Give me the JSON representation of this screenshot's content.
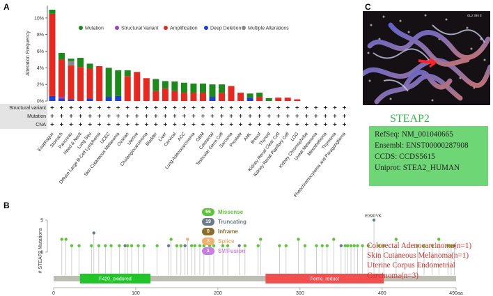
{
  "panels": {
    "a": "A",
    "b": "B",
    "c": "C"
  },
  "chart_data": [
    {
      "type": "bar",
      "title": "",
      "ylabel": "Alteration Frequency",
      "ylim": [
        0,
        11.5
      ],
      "yticks": [
        "0%",
        "2%",
        "4%",
        "6%",
        "8%",
        "10%"
      ],
      "legend": [
        {
          "name": "Mutation",
          "color": "#1a8a1a"
        },
        {
          "name": "Structural Variant",
          "color": "#9a3fbf"
        },
        {
          "name": "Amplification",
          "color": "#e8281e"
        },
        {
          "name": "Deep Deletion",
          "color": "#1e3fd6"
        },
        {
          "name": "Multiple Alterations",
          "color": "#888888"
        }
      ],
      "categories": [
        "Esophagus",
        "Stomach",
        "Pancreas",
        "Head & Neck",
        "Lung Squ",
        "Diffuse Large B-Cell Lymphoma",
        "UCEC",
        "Skin Cutaneous Melanoma",
        "Ovarian",
        "Uterine",
        "Cholangiocarcinoma",
        "Bladder",
        "Liver",
        "Cervical",
        "ACC",
        "Lung Adenocarcinoma",
        "GBM",
        "Colorectal",
        "Testicular Germ Cell",
        "Sarcoma",
        "Prostate",
        "AML",
        "Breast",
        "Thyroid",
        "Kidney Renal Clear Cell",
        "Kidney Renal Papillary Cell",
        "LGG",
        "Kidney Chromophobe",
        "Uveal Melanoma",
        "Mesothelioma",
        "Thymoma",
        "Pheochromocytoma and Paraganglioma"
      ],
      "series": [
        {
          "name": "Deep Deletion",
          "values": [
            0.6,
            0.3,
            0.2,
            0,
            0.3,
            0,
            0.5,
            0.6,
            0,
            0,
            0,
            0,
            0,
            0,
            0,
            0,
            0,
            0.5,
            0,
            0,
            0,
            0.4,
            0,
            0,
            0,
            0,
            0,
            0,
            0,
            0,
            0,
            0
          ]
        },
        {
          "name": "Structural Variant",
          "values": [
            0,
            0.2,
            0,
            0,
            0,
            0,
            0,
            0,
            0,
            0,
            0,
            0,
            0,
            0,
            0,
            0,
            0,
            0,
            0,
            0,
            0,
            0,
            0,
            0,
            0,
            0,
            0,
            0,
            0,
            0,
            0,
            0
          ]
        },
        {
          "name": "Amplification",
          "values": [
            9.9,
            4.5,
            4.1,
            4.1,
            3.6,
            4.2,
            0,
            0,
            3.0,
            3.5,
            2.75,
            1.2,
            1.5,
            1.2,
            1.0,
            1.0,
            1.0,
            0,
            1.0,
            1.8,
            1.0,
            0,
            0.5,
            0,
            0.4,
            0.4,
            0.2,
            0,
            0,
            0,
            0,
            0
          ]
        },
        {
          "name": "Multiple Alterations",
          "values": [
            0,
            0,
            0.5,
            0,
            0,
            0,
            0,
            0,
            0,
            0,
            0,
            0,
            0,
            0,
            0,
            0,
            0,
            0,
            0,
            0,
            0,
            0,
            0,
            0,
            0,
            0,
            0,
            0,
            0,
            0,
            0,
            0
          ]
        },
        {
          "name": "Mutation",
          "values": [
            0.5,
            0.8,
            0.3,
            1.1,
            0.6,
            0,
            3.5,
            3.1,
            0.7,
            0,
            0,
            1.45,
            0.9,
            1.15,
            1.2,
            1.1,
            1.1,
            1.5,
            1.0,
            0,
            0,
            0.5,
            0.5,
            0.35,
            0,
            0,
            0,
            0,
            0,
            0,
            0,
            0
          ]
        }
      ],
      "track_labels": [
        "Structural variant",
        "Mutation",
        "CNA"
      ],
      "track_mark": "+"
    },
    {
      "type": "scatter",
      "ylabel": "# STEAP2 Mutations",
      "xlim": [
        0,
        490
      ],
      "ylim": [
        0,
        5
      ],
      "xticks": [
        "0",
        "100",
        "200",
        "300",
        "400",
        "490aa"
      ],
      "yticks": [
        "0",
        "5"
      ],
      "domains": [
        {
          "name": "F420_oxidored",
          "start": 32,
          "end": 118,
          "color": "#22c42a"
        },
        {
          "name": "Ferric_reduct",
          "start": 258,
          "end": 402,
          "color": "#f25050"
        }
      ],
      "annotation": "E390*/K",
      "mutation_types": [
        {
          "count": "66",
          "label": "Missense",
          "color": "#5ec43a"
        },
        {
          "count": "19",
          "label": "Truncating",
          "color": "#6b7b8c"
        },
        {
          "count": "0",
          "label": "Inframe",
          "color": "#8a6d2a"
        },
        {
          "count": "3",
          "label": "Splice",
          "color": "#f0b070"
        },
        {
          "count": "1",
          "label": "SV/Fusion",
          "color": "#c97fe0"
        }
      ],
      "lollipops": [
        {
          "x": 10,
          "y": 2,
          "t": "m"
        },
        {
          "x": 15,
          "y": 2,
          "t": "m"
        },
        {
          "x": 22,
          "y": 1,
          "t": "m"
        },
        {
          "x": 31,
          "y": 1,
          "t": "m"
        },
        {
          "x": 46,
          "y": 1,
          "t": "m"
        },
        {
          "x": 49,
          "y": 3,
          "t": "t"
        },
        {
          "x": 55,
          "y": 1,
          "t": "m"
        },
        {
          "x": 63,
          "y": 1,
          "t": "m"
        },
        {
          "x": 70,
          "y": 1,
          "t": "m"
        },
        {
          "x": 80,
          "y": 1,
          "t": "m"
        },
        {
          "x": 87,
          "y": 1,
          "t": "t"
        },
        {
          "x": 90,
          "y": 1,
          "t": "m"
        },
        {
          "x": 95,
          "y": 1,
          "t": "m"
        },
        {
          "x": 103,
          "y": 1,
          "t": "m"
        },
        {
          "x": 110,
          "y": 1,
          "t": "m"
        },
        {
          "x": 126,
          "y": 1,
          "t": "m"
        },
        {
          "x": 140,
          "y": 1,
          "t": "t"
        },
        {
          "x": 143,
          "y": 2,
          "t": "m"
        },
        {
          "x": 150,
          "y": 1,
          "t": "m"
        },
        {
          "x": 155,
          "y": 1,
          "t": "m"
        },
        {
          "x": 160,
          "y": 1,
          "t": "t"
        },
        {
          "x": 163,
          "y": 2,
          "t": "s"
        },
        {
          "x": 168,
          "y": 1,
          "t": "m"
        },
        {
          "x": 172,
          "y": 1,
          "t": "m"
        },
        {
          "x": 178,
          "y": 1,
          "t": "m"
        },
        {
          "x": 183,
          "y": 1,
          "t": "m"
        },
        {
          "x": 190,
          "y": 1,
          "t": "m"
        },
        {
          "x": 195,
          "y": 1,
          "t": "m"
        },
        {
          "x": 206,
          "y": 1,
          "t": "m"
        },
        {
          "x": 212,
          "y": 1,
          "t": "m"
        },
        {
          "x": 226,
          "y": 1,
          "t": "t"
        },
        {
          "x": 233,
          "y": 1,
          "t": "m"
        },
        {
          "x": 249,
          "y": 1,
          "t": "m"
        },
        {
          "x": 252,
          "y": 2,
          "t": "m"
        },
        {
          "x": 275,
          "y": 1,
          "t": "m"
        },
        {
          "x": 283,
          "y": 1,
          "t": "m"
        },
        {
          "x": 298,
          "y": 2,
          "t": "m"
        },
        {
          "x": 306,
          "y": 1,
          "t": "m"
        },
        {
          "x": 320,
          "y": 1,
          "t": "m"
        },
        {
          "x": 327,
          "y": 1,
          "t": "m"
        },
        {
          "x": 333,
          "y": 1,
          "t": "m"
        },
        {
          "x": 341,
          "y": 2,
          "t": "m"
        },
        {
          "x": 350,
          "y": 1,
          "t": "t"
        },
        {
          "x": 355,
          "y": 1,
          "t": "m"
        },
        {
          "x": 358,
          "y": 1,
          "t": "m"
        },
        {
          "x": 362,
          "y": 1,
          "t": "m"
        },
        {
          "x": 366,
          "y": 1,
          "t": "m"
        },
        {
          "x": 370,
          "y": 1,
          "t": "m"
        },
        {
          "x": 376,
          "y": 1,
          "t": "m"
        },
        {
          "x": 383,
          "y": 1,
          "t": "m"
        },
        {
          "x": 390,
          "y": 5,
          "t": "t"
        },
        {
          "x": 396,
          "y": 1,
          "t": "m"
        },
        {
          "x": 402,
          "y": 1,
          "t": "m"
        },
        {
          "x": 417,
          "y": 2,
          "t": "m"
        },
        {
          "x": 443,
          "y": 1,
          "t": "m"
        },
        {
          "x": 451,
          "y": 1,
          "t": "m"
        },
        {
          "x": 461,
          "y": 1,
          "t": "m"
        },
        {
          "x": 469,
          "y": 2,
          "t": "m"
        },
        {
          "x": 480,
          "y": 1,
          "t": "m"
        },
        {
          "x": 484,
          "y": 1,
          "t": "m"
        },
        {
          "x": 488,
          "y": 1,
          "t": "t"
        }
      ]
    }
  ],
  "protein": {
    "name": "STEAP2",
    "refseq": "RefSeq: NM_001040665",
    "ensembl": "Ensembl: ENST00000287908",
    "ccds": "CCDS: CCDS5615",
    "uniprot": "Uniprot: STEA2_HUMAN"
  },
  "cancer_notes": [
    "Colorectal Adenocarcinoma(n=1)",
    "Skin Cutaneous Melanoma(n=1)",
    "Uterine Corpus Endometrial",
    "Carcinoma(n=3)"
  ],
  "structure_caption": "GLU 390 E"
}
